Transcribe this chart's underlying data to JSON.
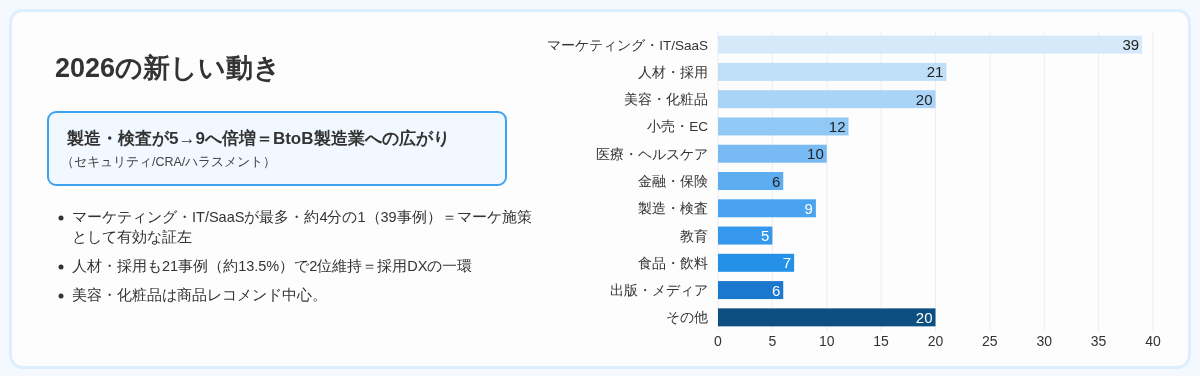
{
  "chart_data": {
    "type": "bar",
    "orientation": "horizontal",
    "title": "2026の新しい動き",
    "annotations": [
      "製造・検査が5→9へ倍増＝BtoB製造業への広がり",
      "（セキュリティ/CRA/ハラスメント）",
      "マーケティング・IT/SaaSが最多・約4分の1（39事例）＝マーケ施策として有効な証左",
      "人材・採用も21事例（約13.5%）で2位維持＝採用DXの一環",
      "美容・化粧品は商品レコメンド中心。"
    ],
    "categories": [
      "マーケティング・IT/SaaS",
      "人材・採用",
      "美容・化粧品",
      "小売・EC",
      "医療・ヘルスケア",
      "金融・保険",
      "製造・検査",
      "教育",
      "食品・飲料",
      "出版・メディア",
      "その他"
    ],
    "values": [
      39,
      21,
      20,
      12,
      10,
      6,
      9,
      5,
      7,
      6,
      20
    ],
    "colors": [
      "#d6e9fb",
      "#bfdff9",
      "#a9d4f8",
      "#90c8f6",
      "#78bbf4",
      "#5eadf0",
      "#4aa3ee",
      "#3598ec",
      "#2590e8",
      "#1c78cc",
      "#0d4f80"
    ],
    "xlim": [
      0,
      40
    ],
    "xticks": [
      0,
      5,
      10,
      15,
      20,
      25,
      30,
      35,
      40
    ],
    "grid": "x",
    "data_labels": true
  }
}
